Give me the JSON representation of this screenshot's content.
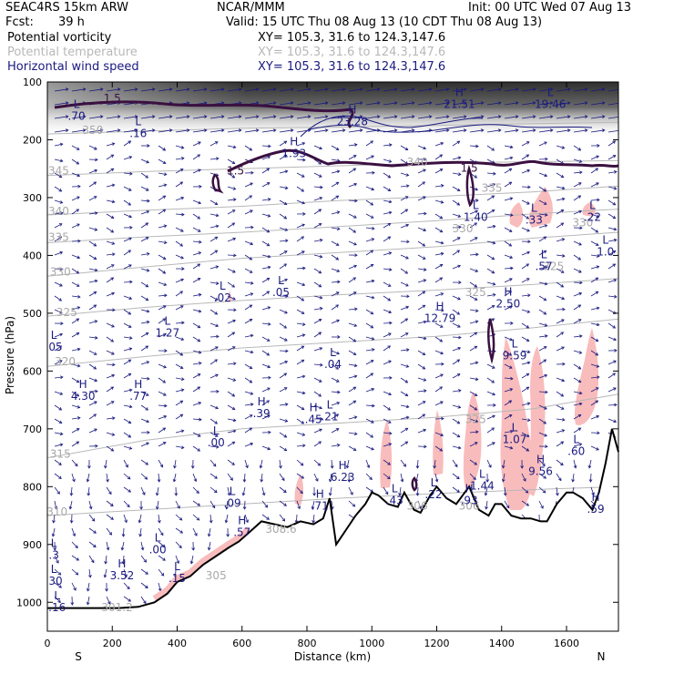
{
  "header": {
    "model": "SEAC4RS 15km ARW",
    "org": "NCAR/MMM",
    "init": "Init: 00 UTC Wed 07 Aug 13",
    "fcst_label": "Fcst:",
    "fcst_value": "39 h",
    "valid": "Valid: 15 UTC Thu 08 Aug 13 (10 CDT Thu 08 Aug 13)"
  },
  "legend": [
    {
      "name": "Potential vorticity",
      "xy": "XY= 105.3, 31.6 to 124.3,147.6",
      "color": "#000000"
    },
    {
      "name": "Potential temperature",
      "xy": "XY= 105.3, 31.6 to 124.3,147.6",
      "color": "#b8b8b8"
    },
    {
      "name": "Horizontal wind speed",
      "xy": "XY= 105.3, 31.6 to 124.3,147.6",
      "color": "#1a1a80"
    }
  ],
  "chart_data": {
    "type": "line",
    "xlabel": "Distance (km)",
    "ylabel": "Pressure (hPa)",
    "xlim": [
      0,
      1760
    ],
    "ylim": [
      1050,
      100
    ],
    "x_ticks": [
      0,
      200,
      400,
      600,
      800,
      1000,
      1200,
      1400,
      1600
    ],
    "y_ticks": [
      100,
      200,
      300,
      400,
      500,
      600,
      700,
      800,
      900,
      1000
    ],
    "x_end_labels": {
      "left": "S",
      "right": "N"
    },
    "terrain": {
      "x": [
        0,
        80,
        150,
        220,
        280,
        330,
        370,
        400,
        440,
        480,
        520,
        560,
        590,
        620,
        660,
        700,
        740,
        780,
        820,
        850,
        870,
        890,
        920,
        950,
        980,
        1000,
        1020,
        1050,
        1080,
        1100,
        1130,
        1150,
        1180,
        1200,
        1230,
        1260,
        1280,
        1300,
        1330,
        1360,
        1380,
        1400,
        1430,
        1460,
        1490,
        1520,
        1540,
        1570,
        1600,
        1620,
        1650,
        1680,
        1700,
        1720,
        1740,
        1760
      ],
      "p": [
        1010,
        1010,
        1010,
        1010,
        1008,
        1000,
        985,
        965,
        955,
        935,
        920,
        905,
        895,
        880,
        860,
        865,
        870,
        860,
        865,
        855,
        820,
        900,
        875,
        850,
        830,
        810,
        815,
        830,
        835,
        810,
        840,
        845,
        815,
        800,
        820,
        830,
        815,
        800,
        840,
        850,
        830,
        830,
        850,
        855,
        855,
        860,
        860,
        830,
        810,
        810,
        820,
        840,
        810,
        760,
        700,
        740
      ]
    },
    "series": [
      {
        "name": "Potential vorticity",
        "contour_levels": [
          1.5
        ]
      },
      {
        "name": "Potential temperature",
        "contour_levels": [
          301.2,
          305,
          308.6,
          310,
          315,
          320,
          325,
          330,
          335,
          340,
          345,
          350
        ]
      },
      {
        "name": "Horizontal wind speed"
      }
    ],
    "theta_labels": [
      {
        "text": "350",
        "x": 140,
        "p": 190
      },
      {
        "text": "345",
        "x": 35,
        "p": 260
      },
      {
        "text": "340",
        "x": 35,
        "p": 330
      },
      {
        "text": "335",
        "x": 35,
        "p": 375
      },
      {
        "text": "330",
        "x": 40,
        "p": 435
      },
      {
        "text": "325",
        "x": 60,
        "p": 505
      },
      {
        "text": "320",
        "x": 55,
        "p": 590
      },
      {
        "text": "315",
        "x": 40,
        "p": 750
      },
      {
        "text": "310",
        "x": 30,
        "p": 850
      },
      {
        "text": "301.2",
        "x": 215,
        "p": 1015
      },
      {
        "text": "308.6",
        "x": 720,
        "p": 880
      },
      {
        "text": "305",
        "x": 520,
        "p": 960
      },
      {
        "text": "340",
        "x": 1140,
        "p": 245
      },
      {
        "text": "335",
        "x": 1370,
        "p": 290
      },
      {
        "text": "330",
        "x": 1280,
        "p": 360
      },
      {
        "text": "330",
        "x": 1650,
        "p": 350
      },
      {
        "text": "325",
        "x": 1560,
        "p": 425
      },
      {
        "text": "325",
        "x": 1320,
        "p": 470
      },
      {
        "text": "325",
        "x": 1320,
        "p": 690
      },
      {
        "text": "306",
        "x": 1140,
        "p": 840
      },
      {
        "text": "306",
        "x": 1300,
        "p": 840
      }
    ],
    "pv_labels": [
      {
        "text": "1.5",
        "x": 200,
        "p": 135
      },
      {
        "text": "1.5",
        "x": 580,
        "p": 260
      },
      {
        "text": "1.5",
        "x": 1300,
        "p": 255
      }
    ],
    "extrema": [
      {
        "type": "H",
        "value": "4.30",
        "x": 110,
        "p": 650
      },
      {
        "type": "H",
        "value": ".77",
        "x": 280,
        "p": 650
      },
      {
        "type": "H",
        "value": "3.52",
        "x": 230,
        "p": 960
      },
      {
        "type": "H",
        "value": ".39",
        "x": 660,
        "p": 680
      },
      {
        "type": "H",
        "value": ".45",
        "x": 820,
        "p": 690
      },
      {
        "type": "H",
        "value": "6.23",
        "x": 910,
        "p": 790
      },
      {
        "type": "H",
        "value": ".71",
        "x": 840,
        "p": 840
      },
      {
        "type": "H",
        "value": ".57",
        "x": 600,
        "p": 885
      },
      {
        "type": "H",
        "value": "1.93",
        "x": 760,
        "p": 230
      },
      {
        "type": "H",
        "value": "23.28",
        "x": 940,
        "p": 175
      },
      {
        "type": "H",
        "value": "21.51",
        "x": 1270,
        "p": 145
      },
      {
        "type": "H",
        "value": "12.79",
        "x": 1210,
        "p": 515
      },
      {
        "type": "H",
        "value": "2.50",
        "x": 1420,
        "p": 490
      },
      {
        "type": "H",
        "value": "9.56",
        "x": 1520,
        "p": 780
      },
      {
        "type": "H",
        "value": ".59",
        "x": 1690,
        "p": 845
      },
      {
        "type": "H",
        "value": ".93",
        "x": 1300,
        "p": 830
      },
      {
        "type": "L",
        "value": ".70",
        "x": 90,
        "p": 165
      },
      {
        "type": "L",
        "value": ".16",
        "x": 280,
        "p": 195
      },
      {
        "type": "L",
        "value": "1.27",
        "x": 370,
        "p": 540
      },
      {
        "type": "L",
        "value": ".02",
        "x": 540,
        "p": 480
      },
      {
        "type": "L",
        "value": ".05",
        "x": 720,
        "p": 470
      },
      {
        "type": "L",
        "value": ".04",
        "x": 880,
        "p": 595
      },
      {
        "type": "L",
        "value": ".21",
        "x": 870,
        "p": 685
      },
      {
        "type": "L",
        "value": ".00",
        "x": 520,
        "p": 730
      },
      {
        "type": "L",
        "value": ".09",
        "x": 570,
        "p": 835
      },
      {
        "type": "L",
        "value": ".00",
        "x": 340,
        "p": 915
      },
      {
        "type": "L",
        "value": ".15",
        "x": 400,
        "p": 965
      },
      {
        "type": "L",
        "value": ".30",
        "x": 20,
        "p": 970
      },
      {
        "type": "L",
        "value": ".16",
        "x": 30,
        "p": 1015
      },
      {
        "type": "L",
        "value": ".3",
        "x": 20,
        "p": 925
      },
      {
        "type": "L",
        "value": ".05",
        "x": 20,
        "p": 565
      },
      {
        "type": "L",
        "value": ".43",
        "x": 1070,
        "p": 830
      },
      {
        "type": "L",
        "value": ".22",
        "x": 1190,
        "p": 820
      },
      {
        "type": "L",
        "value": "1.44",
        "x": 1340,
        "p": 805
      },
      {
        "type": "L",
        "value": "1.40",
        "x": 1320,
        "p": 340
      },
      {
        "type": "L",
        "value": ".33",
        "x": 1500,
        "p": 345
      },
      {
        "type": "L",
        "value": ".22",
        "x": 1680,
        "p": 340
      },
      {
        "type": "L",
        "value": ".57",
        "x": 1530,
        "p": 425
      },
      {
        "type": "L",
        "value": "1.0",
        "x": 1720,
        "p": 400
      },
      {
        "type": "L",
        "value": "9.59",
        "x": 1440,
        "p": 580
      },
      {
        "type": "L",
        "value": "1.07",
        "x": 1440,
        "p": 725
      },
      {
        "type": "L",
        "value": ".60",
        "x": 1630,
        "p": 745
      },
      {
        "type": "L",
        "value": "19.46",
        "x": 1550,
        "p": 145
      }
    ]
  }
}
